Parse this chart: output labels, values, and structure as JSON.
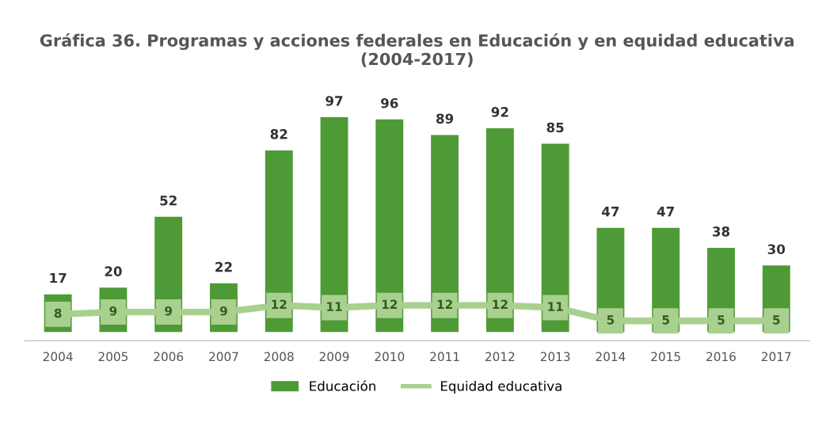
{
  "chart_data": {
    "type": "bar",
    "title": "Gráfica 36. Programas y acciones federales en Educación y en equidad educativa (2004-2017)",
    "categories": [
      "2004",
      "2005",
      "2006",
      "2007",
      "2008",
      "2009",
      "2010",
      "2011",
      "2012",
      "2013",
      "2014",
      "2015",
      "2016",
      "2017"
    ],
    "series": [
      {
        "name": "Educación",
        "color": "#4e9a36",
        "values": [
          17,
          20,
          52,
          22,
          82,
          97,
          96,
          89,
          92,
          85,
          47,
          47,
          38,
          30
        ]
      },
      {
        "name": "Equidad educativa",
        "type": "line",
        "color": "#a9d08e",
        "values": [
          8,
          9,
          9,
          9,
          12,
          11,
          12,
          12,
          12,
          11,
          5,
          5,
          5,
          5
        ]
      }
    ],
    "data_labels": true,
    "legend": "bottom",
    "marker": "square",
    "line_style": "solid",
    "grid": false,
    "tick_labels": "x"
  }
}
